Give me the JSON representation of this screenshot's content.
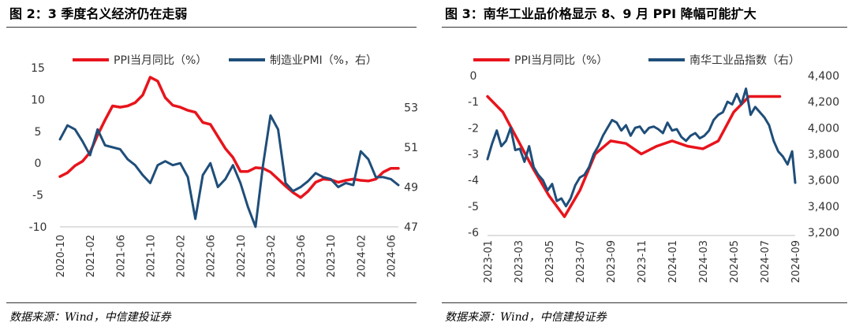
{
  "left_panel": {
    "title": "图 2：3 季度名义经济仍在走弱",
    "source": "数据来源：Wind，中信建投证券"
  },
  "right_panel": {
    "title": "图 3：南华工业品价格显示 8、9 月 PPI 降幅可能扩大",
    "source": "数据来源：Wind，中信建投证券"
  },
  "colors": {
    "ppi": "#e8141c",
    "blue": "#1f4e79"
  },
  "chart_data": [
    {
      "type": "line",
      "legend_position": "top",
      "grid": false,
      "ylim_left": [
        -10,
        15
      ],
      "left_ticks": [
        15,
        10,
        5,
        0,
        -5,
        -10
      ],
      "ylim_right": [
        47,
        55
      ],
      "right_ticks": [
        53,
        51,
        49,
        47
      ],
      "x_tick_labels": [
        "2020-10",
        "2021-02",
        "2021-06",
        "2021-10",
        "2022-02",
        "2022-06",
        "2022-10",
        "2023-02",
        "2023-06",
        "2023-10",
        "2024-02",
        "2024-06"
      ],
      "x_tick_index": [
        0,
        4,
        8,
        12,
        16,
        20,
        24,
        28,
        32,
        36,
        40,
        44
      ],
      "series": [
        {
          "name": "PPI当月同比（%）",
          "axis": "left",
          "color": "#e8141c",
          "values": [
            -2.1,
            -1.5,
            -0.4,
            0.3,
            1.7,
            4.4,
            6.8,
            9.0,
            8.8,
            9.0,
            9.5,
            10.7,
            13.5,
            12.9,
            10.3,
            9.1,
            8.8,
            8.3,
            8.0,
            6.4,
            6.1,
            4.2,
            2.3,
            0.9,
            -1.3,
            -1.3,
            -0.7,
            -0.8,
            -1.4,
            -2.5,
            -3.6,
            -4.6,
            -5.4,
            -4.4,
            -3.0,
            -2.5,
            -2.6,
            -3.0,
            -2.7,
            -2.5,
            -2.7,
            -2.8,
            -2.5,
            -1.4,
            -0.8,
            -0.8
          ]
        },
        {
          "name": "制造业PMI（%，右）",
          "axis": "right",
          "color": "#1f4e79",
          "values": [
            51.4,
            52.1,
            51.9,
            51.3,
            50.6,
            51.9,
            51.1,
            51.0,
            50.9,
            50.4,
            50.1,
            49.6,
            49.2,
            50.1,
            50.3,
            50.1,
            50.2,
            49.5,
            47.4,
            49.6,
            50.2,
            49.0,
            49.4,
            50.1,
            49.2,
            48.0,
            47.0,
            50.1,
            52.6,
            51.9,
            49.2,
            48.8,
            49.0,
            49.3,
            49.7,
            49.5,
            49.4,
            49.0,
            49.2,
            49.1,
            50.8,
            50.4,
            49.5,
            49.5,
            49.4,
            49.1
          ]
        }
      ]
    },
    {
      "type": "line",
      "legend_position": "top",
      "grid": false,
      "ylim_left": [
        -6,
        0
      ],
      "left_ticks": [
        0,
        -1,
        -2,
        -3,
        -4,
        -5,
        -6
      ],
      "ylim_right": [
        3200,
        4400
      ],
      "right_ticks": [
        "4,400",
        "4,200",
        "4,000",
        "3,800",
        "3,600",
        "3,400",
        "3,200"
      ],
      "x_tick_labels": [
        "2023-01",
        "2023-03",
        "2023-05",
        "2023-07",
        "2023-09",
        "2023-11",
        "2024-01",
        "2024-03",
        "2024-05",
        "2024-07",
        "2024-09"
      ],
      "x_tick_index": [
        0,
        2,
        4,
        6,
        8,
        10,
        12,
        14,
        16,
        18,
        20
      ],
      "series": [
        {
          "name": "PPI当月同比（%）",
          "axis": "left",
          "color": "#e8141c",
          "x": [
            0,
            1,
            2,
            3,
            4,
            5,
            6,
            7,
            8,
            9,
            10,
            11,
            12,
            13,
            14,
            15,
            16,
            17,
            18,
            19
          ],
          "values": [
            -0.8,
            -1.4,
            -2.5,
            -3.6,
            -4.6,
            -5.4,
            -4.4,
            -3.0,
            -2.5,
            -2.6,
            -3.0,
            -2.7,
            -2.5,
            -2.7,
            -2.8,
            -2.5,
            -1.4,
            -0.8,
            -0.8,
            -0.8
          ]
        },
        {
          "name": "南华工业品指数（右）",
          "axis": "right",
          "color": "#1f4e79",
          "x": [
            0,
            0.3,
            0.6,
            0.9,
            1.2,
            1.5,
            1.8,
            2.1,
            2.4,
            2.7,
            3.0,
            3.3,
            3.6,
            3.9,
            4.2,
            4.5,
            4.8,
            5.1,
            5.4,
            5.7,
            6.0,
            6.3,
            6.6,
            6.9,
            7.2,
            7.5,
            7.8,
            8.1,
            8.4,
            8.7,
            9.0,
            9.3,
            9.6,
            9.9,
            10.2,
            10.5,
            10.8,
            11.1,
            11.4,
            11.7,
            12.0,
            12.3,
            12.6,
            12.9,
            13.2,
            13.5,
            13.8,
            14.1,
            14.4,
            14.7,
            15.0,
            15.3,
            15.6,
            15.9,
            16.2,
            16.5,
            16.8,
            17.1,
            17.4,
            17.7,
            18.0,
            18.3,
            18.6,
            18.9,
            19.2,
            19.5,
            19.8,
            20.0
          ],
          "values": [
            3760,
            3880,
            3980,
            3860,
            3900,
            4000,
            3830,
            3840,
            3740,
            3860,
            3700,
            3640,
            3600,
            3520,
            3570,
            3440,
            3460,
            3400,
            3460,
            3560,
            3620,
            3640,
            3700,
            3800,
            3860,
            3940,
            4000,
            4060,
            4040,
            3980,
            4020,
            3940,
            4000,
            4010,
            3960,
            4000,
            4010,
            3990,
            3960,
            4040,
            3980,
            3990,
            3930,
            3900,
            3940,
            3960,
            3920,
            3940,
            3980,
            4060,
            4100,
            4120,
            4200,
            4180,
            4260,
            4180,
            4300,
            4100,
            4160,
            4120,
            4080,
            4020,
            3900,
            3820,
            3780,
            3720,
            3820,
            3580
          ]
        }
      ]
    }
  ]
}
